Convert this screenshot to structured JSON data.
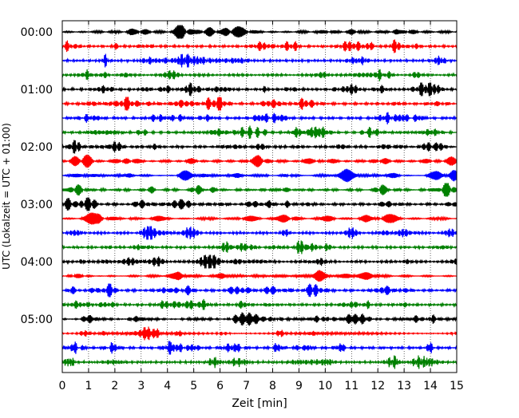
{
  "chart_data": {
    "type": "line",
    "xlabel": "Zeit  [min]",
    "ylabel": "UTC (Lokalzeit = UTC + 01:00)",
    "xlim": [
      0,
      15
    ],
    "x_ticks": [
      "0",
      "1",
      "2",
      "3",
      "4",
      "5",
      "6",
      "7",
      "8",
      "9",
      "10",
      "11",
      "12",
      "13",
      "14",
      "15"
    ],
    "y_ticks": [
      "00:00",
      "01:00",
      "02:00",
      "03:00",
      "04:00",
      "05:00"
    ],
    "grid": "vertical dotted",
    "color_cycle": [
      "#000000",
      "#ff0000",
      "#0000ff",
      "#008000"
    ],
    "trace_count": 24,
    "minutes_per_trace": 15
  }
}
